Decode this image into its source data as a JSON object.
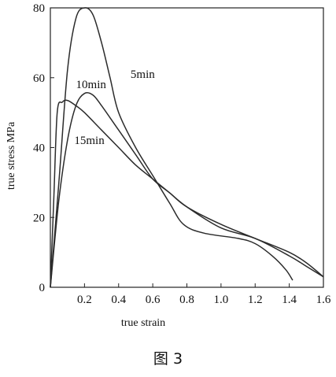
{
  "chart_data": {
    "type": "line",
    "xlabel": "true strain",
    "ylabel": "true stress MPa",
    "xlim": [
      0,
      1.6
    ],
    "ylim": [
      0,
      80
    ],
    "x_ticks": [
      "0.2",
      "0.4",
      "0.6",
      "0.8",
      "1.0",
      "1.2",
      "1.4",
      "1.6"
    ],
    "y_ticks": [
      "0",
      "20",
      "40",
      "60",
      "80"
    ],
    "series": [
      {
        "name": "5min",
        "points": [
          [
            0.0,
            0
          ],
          [
            0.05,
            30
          ],
          [
            0.1,
            62
          ],
          [
            0.15,
            77
          ],
          [
            0.2,
            80
          ],
          [
            0.25,
            78
          ],
          [
            0.3,
            70
          ],
          [
            0.35,
            60
          ],
          [
            0.4,
            50
          ],
          [
            0.5,
            40
          ],
          [
            0.6,
            32
          ],
          [
            0.7,
            24
          ],
          [
            0.78,
            18
          ],
          [
            0.9,
            15.5
          ],
          [
            1.1,
            14
          ],
          [
            1.2,
            12.5
          ],
          [
            1.3,
            9
          ],
          [
            1.38,
            5
          ],
          [
            1.42,
            2
          ]
        ]
      },
      {
        "name": "10min",
        "points": [
          [
            0.0,
            0
          ],
          [
            0.05,
            25
          ],
          [
            0.1,
            42
          ],
          [
            0.15,
            52
          ],
          [
            0.2,
            55.5
          ],
          [
            0.25,
            55
          ],
          [
            0.3,
            52
          ],
          [
            0.4,
            45
          ],
          [
            0.5,
            38
          ],
          [
            0.6,
            31
          ],
          [
            0.7,
            27
          ],
          [
            0.8,
            23
          ],
          [
            1.0,
            17
          ],
          [
            1.2,
            14
          ],
          [
            1.4,
            9
          ],
          [
            1.5,
            6
          ],
          [
            1.6,
            3
          ]
        ]
      },
      {
        "name": "15min",
        "points": [
          [
            0.0,
            0
          ],
          [
            0.02,
            25
          ],
          [
            0.04,
            50
          ],
          [
            0.07,
            53
          ],
          [
            0.1,
            53.5
          ],
          [
            0.15,
            52
          ],
          [
            0.2,
            50
          ],
          [
            0.3,
            45
          ],
          [
            0.4,
            40
          ],
          [
            0.5,
            35
          ],
          [
            0.6,
            31
          ],
          [
            0.7,
            27
          ],
          [
            0.8,
            23
          ],
          [
            1.0,
            18
          ],
          [
            1.2,
            14
          ],
          [
            1.4,
            10
          ],
          [
            1.5,
            7
          ],
          [
            1.6,
            3
          ]
        ]
      }
    ]
  },
  "caption": "图 3"
}
